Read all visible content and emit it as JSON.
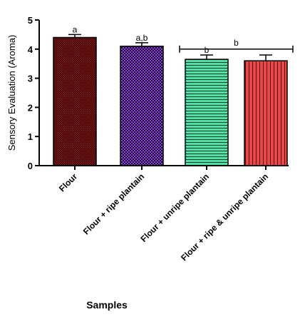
{
  "chart_data": {
    "type": "bar",
    "categories": [
      "Flour",
      "Flour + ripe plantain",
      "Flour + unripe plantain",
      "Flour + ripe & unripe plantain"
    ],
    "values": [
      4.4,
      4.1,
      3.65,
      3.6
    ],
    "errors": [
      0.1,
      0.12,
      0.15,
      0.2
    ],
    "letters": [
      "a",
      "a,b",
      "b",
      ""
    ],
    "group_bracket": {
      "from": 2,
      "to": 3,
      "label": "b"
    },
    "bar_colors": [
      "#8b1a1a",
      "#7b2fbf",
      "#4fe0a8",
      "#e84848"
    ],
    "bar_patterns": [
      "dense-check",
      "check",
      "horizontal-lines",
      "vertical-lines"
    ],
    "ylabel": "Sensory Evaluation (Aroma)",
    "xlabel": "Samples",
    "ylim": [
      0,
      5
    ],
    "yticks": [
      "0",
      "1",
      "2",
      "3",
      "4",
      "5"
    ],
    "grid": false
  }
}
